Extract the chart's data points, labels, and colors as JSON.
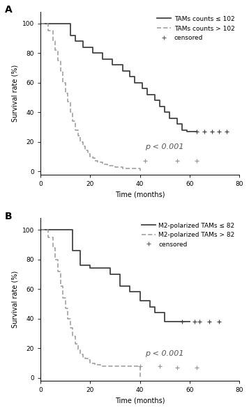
{
  "panel_A": {
    "label": "A",
    "xlabel": "Time (months)",
    "ylabel": "Survival rate (%)",
    "xlim": [
      0,
      80
    ],
    "ylim": [
      -2,
      108
    ],
    "xticks": [
      0,
      20,
      40,
      60,
      80
    ],
    "yticks": [
      0,
      20,
      40,
      60,
      80,
      100
    ],
    "pvalue_text": "p < 0.001",
    "pvalue_x": 42,
    "pvalue_y": 14,
    "legend_label_1": "TAMs counts ≤ 102",
    "legend_label_2": "TAMs counts > 102",
    "legend_label_3": "censored",
    "curve1_t": [
      0,
      9,
      12,
      14,
      17,
      21,
      25,
      29,
      33,
      36,
      38,
      41,
      43,
      46,
      48,
      50,
      52,
      55,
      57,
      59,
      63
    ],
    "curve1_s": [
      100,
      100,
      92,
      88,
      84,
      80,
      76,
      72,
      68,
      64,
      60,
      56,
      52,
      48,
      44,
      40,
      36,
      32,
      28,
      27,
      27
    ],
    "curve1_censor_t": [
      63,
      66,
      69,
      72,
      75
    ],
    "curve1_censor_s": [
      27,
      27,
      27,
      27,
      27
    ],
    "curve2_t": [
      0,
      3,
      5,
      6,
      7,
      8,
      9,
      10,
      11,
      12,
      13,
      14,
      15,
      16,
      17,
      18,
      19,
      20,
      21,
      22,
      23,
      25,
      27,
      30,
      33,
      40
    ],
    "curve2_s": [
      100,
      95,
      88,
      82,
      75,
      68,
      60,
      53,
      47,
      40,
      34,
      28,
      24,
      20,
      17,
      14,
      12,
      10,
      9,
      7,
      6,
      5,
      4,
      3,
      2,
      0
    ],
    "curve2_censor_t": [
      42,
      55,
      63
    ],
    "curve2_censor_s": [
      7,
      7,
      7
    ]
  },
  "panel_B": {
    "label": "B",
    "xlabel": "Time (months)",
    "ylabel": "Survival rate (%)",
    "xlim": [
      0,
      80
    ],
    "ylim": [
      -2,
      108
    ],
    "xticks": [
      0,
      20,
      40,
      60,
      80
    ],
    "yticks": [
      0,
      20,
      40,
      60,
      80,
      100
    ],
    "pvalue_text": "p < 0.001",
    "pvalue_x": 42,
    "pvalue_y": 14,
    "legend_label_1": "M2-polarized TAMs ≤ 82",
    "legend_label_2": "M2-polarized TAMs > 82",
    "legend_label_3": "censored",
    "curve1_t": [
      0,
      10,
      13,
      16,
      20,
      24,
      28,
      32,
      36,
      40,
      44,
      46,
      50,
      55,
      60
    ],
    "curve1_s": [
      100,
      100,
      86,
      76,
      74,
      74,
      70,
      62,
      58,
      52,
      48,
      44,
      38,
      38,
      38
    ],
    "curve1_censor_t": [
      57,
      62,
      64,
      68,
      72
    ],
    "curve1_censor_s": [
      38,
      38,
      38,
      38,
      38
    ],
    "curve2_t": [
      0,
      3,
      5,
      6,
      7,
      8,
      9,
      10,
      11,
      12,
      13,
      14,
      15,
      16,
      17,
      18,
      19,
      20,
      22,
      24,
      26,
      30,
      35,
      40
    ],
    "curve2_s": [
      100,
      95,
      88,
      80,
      72,
      62,
      54,
      47,
      40,
      34,
      28,
      23,
      19,
      16,
      14,
      13,
      12,
      10,
      9,
      8,
      8,
      8,
      8,
      0
    ],
    "curve2_censor_t": [
      40,
      48,
      55,
      63
    ],
    "curve2_censor_s": [
      8,
      8,
      7,
      7
    ]
  },
  "color_solid": "#444444",
  "color_dashed": "#999999",
  "linewidth_solid": 1.3,
  "linewidth_dashed": 1.1,
  "font_size": 6.5,
  "label_font_size": 7,
  "tick_font_size": 6.5,
  "pvalue_font_size": 8
}
